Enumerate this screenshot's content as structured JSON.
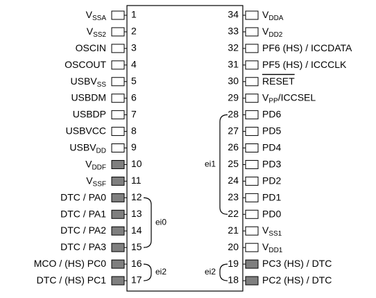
{
  "left": [
    {
      "number": 1,
      "name": "V",
      "sub": "SSA",
      "filled": false
    },
    {
      "number": 2,
      "name": "V",
      "sub": "SS2",
      "filled": false
    },
    {
      "number": 3,
      "name": "OSCIN",
      "filled": false
    },
    {
      "number": 4,
      "name": "OSCOUT",
      "filled": false
    },
    {
      "number": 5,
      "name": "USBV",
      "sub": "SS",
      "filled": false
    },
    {
      "number": 6,
      "name": "USBDM",
      "filled": false
    },
    {
      "number": 7,
      "name": "USBDP",
      "filled": false
    },
    {
      "number": 8,
      "name": "USBVCC",
      "filled": false
    },
    {
      "number": 9,
      "name": "USBV",
      "sub": "DD",
      "filled": false
    },
    {
      "number": 10,
      "name": "V",
      "sub": "DDF",
      "filled": true
    },
    {
      "number": 11,
      "name": "V",
      "sub": "SSF",
      "filled": true
    },
    {
      "number": 12,
      "name": "DTC / PA0",
      "filled": true
    },
    {
      "number": 13,
      "name": "DTC / PA1",
      "filled": true
    },
    {
      "number": 14,
      "name": "DTC / PA2",
      "filled": true
    },
    {
      "number": 15,
      "name": "DTC / PA3",
      "filled": true
    },
    {
      "number": 16,
      "name": "MCO / (HS) PC0",
      "filled": true
    },
    {
      "number": 17,
      "name": "DTC / (HS) PC1",
      "filled": true
    }
  ],
  "right": [
    {
      "number": 34,
      "name": "V",
      "sub": "DDA",
      "filled": false
    },
    {
      "number": 33,
      "name": "V",
      "sub": "DD2",
      "filled": false
    },
    {
      "number": 32,
      "name": "PF6 (HS) / ICCDATA",
      "filled": false
    },
    {
      "number": 31,
      "name": "PF5 (HS) / ICCCLK",
      "filled": false
    },
    {
      "number": 30,
      "name": "RESET",
      "overline": true,
      "filled": false
    },
    {
      "number": 29,
      "name": "V",
      "sub": "PP",
      "suffix": "/ICCSEL",
      "filled": false
    },
    {
      "number": 28,
      "name": "PD6",
      "filled": false
    },
    {
      "number": 27,
      "name": "PD5",
      "filled": false
    },
    {
      "number": 26,
      "name": "PD4",
      "filled": false
    },
    {
      "number": 25,
      "name": "PD3",
      "filled": false
    },
    {
      "number": 24,
      "name": "PD2",
      "filled": false
    },
    {
      "number": 23,
      "name": "PD1",
      "filled": false
    },
    {
      "number": 22,
      "name": "PD0",
      "filled": false
    },
    {
      "number": 21,
      "name": "V",
      "sub": "SS1",
      "filled": false
    },
    {
      "number": 20,
      "name": "V",
      "sub": "DD1",
      "filled": false
    },
    {
      "number": 19,
      "name": "PC3 (HS) / DTC",
      "filled": true
    },
    {
      "number": 18,
      "name": "PC2 (HS) / DTC",
      "filled": true
    }
  ],
  "groups": [
    {
      "label": "ei0"
    },
    {
      "label": "ei1"
    },
    {
      "label": "ei2"
    },
    {
      "label": "ei2"
    }
  ]
}
